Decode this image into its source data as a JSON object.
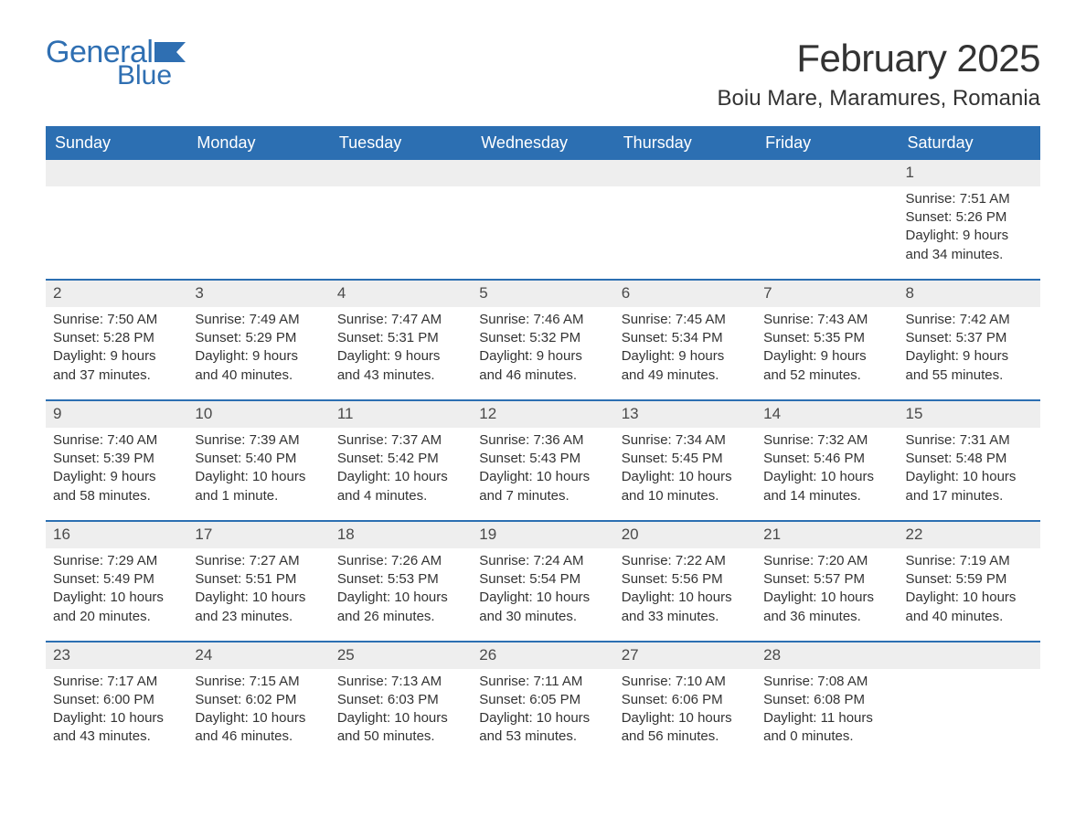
{
  "logo": {
    "text_general": "General",
    "text_blue": "Blue",
    "brand_color": "#2f6fb2"
  },
  "title": {
    "month": "February 2025",
    "location": "Boiu Mare, Maramures, Romania"
  },
  "styles": {
    "header_bg": "#2c6fb2",
    "header_text": "#ffffff",
    "daynum_bg": "#eeeeee",
    "week_border": "#2c6fb2",
    "body_text": "#333333",
    "font_family": "Arial",
    "title_fontsize": 42,
    "location_fontsize": 24,
    "header_fontsize": 18,
    "cell_fontsize": 15
  },
  "day_headers": [
    "Sunday",
    "Monday",
    "Tuesday",
    "Wednesday",
    "Thursday",
    "Friday",
    "Saturday"
  ],
  "weeks": [
    [
      {
        "n": "",
        "sr": "",
        "ss": "",
        "d1": "",
        "d2": ""
      },
      {
        "n": "",
        "sr": "",
        "ss": "",
        "d1": "",
        "d2": ""
      },
      {
        "n": "",
        "sr": "",
        "ss": "",
        "d1": "",
        "d2": ""
      },
      {
        "n": "",
        "sr": "",
        "ss": "",
        "d1": "",
        "d2": ""
      },
      {
        "n": "",
        "sr": "",
        "ss": "",
        "d1": "",
        "d2": ""
      },
      {
        "n": "",
        "sr": "",
        "ss": "",
        "d1": "",
        "d2": ""
      },
      {
        "n": "1",
        "sr": "Sunrise: 7:51 AM",
        "ss": "Sunset: 5:26 PM",
        "d1": "Daylight: 9 hours",
        "d2": "and 34 minutes."
      }
    ],
    [
      {
        "n": "2",
        "sr": "Sunrise: 7:50 AM",
        "ss": "Sunset: 5:28 PM",
        "d1": "Daylight: 9 hours",
        "d2": "and 37 minutes."
      },
      {
        "n": "3",
        "sr": "Sunrise: 7:49 AM",
        "ss": "Sunset: 5:29 PM",
        "d1": "Daylight: 9 hours",
        "d2": "and 40 minutes."
      },
      {
        "n": "4",
        "sr": "Sunrise: 7:47 AM",
        "ss": "Sunset: 5:31 PM",
        "d1": "Daylight: 9 hours",
        "d2": "and 43 minutes."
      },
      {
        "n": "5",
        "sr": "Sunrise: 7:46 AM",
        "ss": "Sunset: 5:32 PM",
        "d1": "Daylight: 9 hours",
        "d2": "and 46 minutes."
      },
      {
        "n": "6",
        "sr": "Sunrise: 7:45 AM",
        "ss": "Sunset: 5:34 PM",
        "d1": "Daylight: 9 hours",
        "d2": "and 49 minutes."
      },
      {
        "n": "7",
        "sr": "Sunrise: 7:43 AM",
        "ss": "Sunset: 5:35 PM",
        "d1": "Daylight: 9 hours",
        "d2": "and 52 minutes."
      },
      {
        "n": "8",
        "sr": "Sunrise: 7:42 AM",
        "ss": "Sunset: 5:37 PM",
        "d1": "Daylight: 9 hours",
        "d2": "and 55 minutes."
      }
    ],
    [
      {
        "n": "9",
        "sr": "Sunrise: 7:40 AM",
        "ss": "Sunset: 5:39 PM",
        "d1": "Daylight: 9 hours",
        "d2": "and 58 minutes."
      },
      {
        "n": "10",
        "sr": "Sunrise: 7:39 AM",
        "ss": "Sunset: 5:40 PM",
        "d1": "Daylight: 10 hours",
        "d2": "and 1 minute."
      },
      {
        "n": "11",
        "sr": "Sunrise: 7:37 AM",
        "ss": "Sunset: 5:42 PM",
        "d1": "Daylight: 10 hours",
        "d2": "and 4 minutes."
      },
      {
        "n": "12",
        "sr": "Sunrise: 7:36 AM",
        "ss": "Sunset: 5:43 PM",
        "d1": "Daylight: 10 hours",
        "d2": "and 7 minutes."
      },
      {
        "n": "13",
        "sr": "Sunrise: 7:34 AM",
        "ss": "Sunset: 5:45 PM",
        "d1": "Daylight: 10 hours",
        "d2": "and 10 minutes."
      },
      {
        "n": "14",
        "sr": "Sunrise: 7:32 AM",
        "ss": "Sunset: 5:46 PM",
        "d1": "Daylight: 10 hours",
        "d2": "and 14 minutes."
      },
      {
        "n": "15",
        "sr": "Sunrise: 7:31 AM",
        "ss": "Sunset: 5:48 PM",
        "d1": "Daylight: 10 hours",
        "d2": "and 17 minutes."
      }
    ],
    [
      {
        "n": "16",
        "sr": "Sunrise: 7:29 AM",
        "ss": "Sunset: 5:49 PM",
        "d1": "Daylight: 10 hours",
        "d2": "and 20 minutes."
      },
      {
        "n": "17",
        "sr": "Sunrise: 7:27 AM",
        "ss": "Sunset: 5:51 PM",
        "d1": "Daylight: 10 hours",
        "d2": "and 23 minutes."
      },
      {
        "n": "18",
        "sr": "Sunrise: 7:26 AM",
        "ss": "Sunset: 5:53 PM",
        "d1": "Daylight: 10 hours",
        "d2": "and 26 minutes."
      },
      {
        "n": "19",
        "sr": "Sunrise: 7:24 AM",
        "ss": "Sunset: 5:54 PM",
        "d1": "Daylight: 10 hours",
        "d2": "and 30 minutes."
      },
      {
        "n": "20",
        "sr": "Sunrise: 7:22 AM",
        "ss": "Sunset: 5:56 PM",
        "d1": "Daylight: 10 hours",
        "d2": "and 33 minutes."
      },
      {
        "n": "21",
        "sr": "Sunrise: 7:20 AM",
        "ss": "Sunset: 5:57 PM",
        "d1": "Daylight: 10 hours",
        "d2": "and 36 minutes."
      },
      {
        "n": "22",
        "sr": "Sunrise: 7:19 AM",
        "ss": "Sunset: 5:59 PM",
        "d1": "Daylight: 10 hours",
        "d2": "and 40 minutes."
      }
    ],
    [
      {
        "n": "23",
        "sr": "Sunrise: 7:17 AM",
        "ss": "Sunset: 6:00 PM",
        "d1": "Daylight: 10 hours",
        "d2": "and 43 minutes."
      },
      {
        "n": "24",
        "sr": "Sunrise: 7:15 AM",
        "ss": "Sunset: 6:02 PM",
        "d1": "Daylight: 10 hours",
        "d2": "and 46 minutes."
      },
      {
        "n": "25",
        "sr": "Sunrise: 7:13 AM",
        "ss": "Sunset: 6:03 PM",
        "d1": "Daylight: 10 hours",
        "d2": "and 50 minutes."
      },
      {
        "n": "26",
        "sr": "Sunrise: 7:11 AM",
        "ss": "Sunset: 6:05 PM",
        "d1": "Daylight: 10 hours",
        "d2": "and 53 minutes."
      },
      {
        "n": "27",
        "sr": "Sunrise: 7:10 AM",
        "ss": "Sunset: 6:06 PM",
        "d1": "Daylight: 10 hours",
        "d2": "and 56 minutes."
      },
      {
        "n": "28",
        "sr": "Sunrise: 7:08 AM",
        "ss": "Sunset: 6:08 PM",
        "d1": "Daylight: 11 hours",
        "d2": "and 0 minutes."
      },
      {
        "n": "",
        "sr": "",
        "ss": "",
        "d1": "",
        "d2": ""
      }
    ]
  ]
}
